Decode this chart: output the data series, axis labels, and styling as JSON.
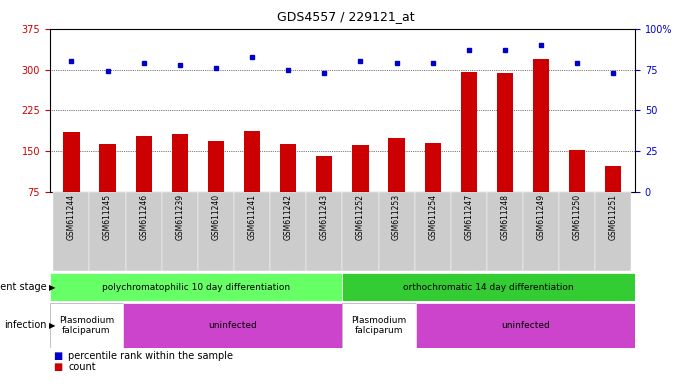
{
  "title": "GDS4557 / 229121_at",
  "samples": [
    "GSM611244",
    "GSM611245",
    "GSM611246",
    "GSM611239",
    "GSM611240",
    "GSM611241",
    "GSM611242",
    "GSM611243",
    "GSM611252",
    "GSM611253",
    "GSM611254",
    "GSM611247",
    "GSM611248",
    "GSM611249",
    "GSM611250",
    "GSM611251"
  ],
  "counts": [
    185,
    163,
    178,
    182,
    168,
    187,
    163,
    142,
    162,
    175,
    165,
    295,
    293,
    320,
    152,
    122
  ],
  "percentiles": [
    80,
    74,
    79,
    78,
    76,
    83,
    75,
    73,
    80,
    79,
    79,
    87,
    87,
    90,
    79,
    73
  ],
  "ymin": 75,
  "ymax": 375,
  "yright_min": 0,
  "yright_max": 100,
  "yticks_left": [
    75,
    150,
    225,
    300,
    375
  ],
  "yticks_right": [
    0,
    25,
    50,
    75,
    100
  ],
  "bar_color": "#cc0000",
  "dot_color": "#0000cc",
  "tick_label_color_left": "#cc0000",
  "tick_label_color_right": "#0000cc",
  "dev_stage_groups": [
    {
      "label": "polychromatophilic 10 day differentiation",
      "start": 0,
      "end": 8,
      "color": "#66ff66"
    },
    {
      "label": "orthochromatic 14 day differentiation",
      "start": 8,
      "end": 16,
      "color": "#33cc33"
    }
  ],
  "infection_groups": [
    {
      "label": "Plasmodium\nfalciparum",
      "start": 0,
      "end": 2,
      "color": "#ffffff"
    },
    {
      "label": "uninfected",
      "start": 2,
      "end": 8,
      "color": "#cc44cc"
    },
    {
      "label": "Plasmodium\nfalciparum",
      "start": 8,
      "end": 10,
      "color": "#ffffff"
    },
    {
      "label": "uninfected",
      "start": 10,
      "end": 16,
      "color": "#cc44cc"
    }
  ],
  "xticklabel_bg": "#cccccc",
  "legend_count_color": "#cc0000",
  "legend_percentile_color": "#0000cc",
  "dev_stage_label": "development stage",
  "infection_label": "infection"
}
